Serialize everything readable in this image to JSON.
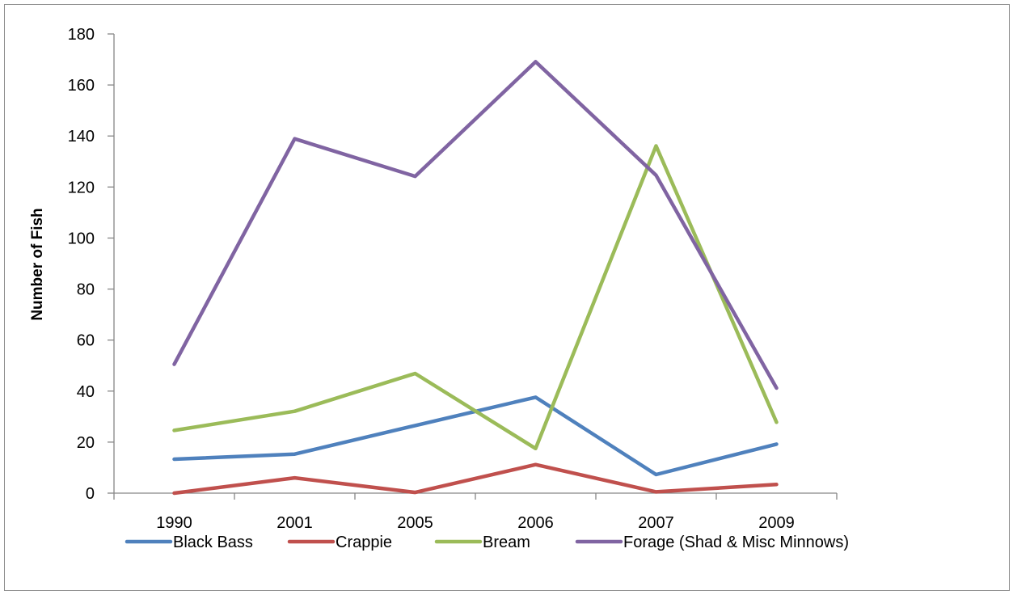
{
  "chart_data": {
    "type": "line",
    "title": "",
    "xlabel": "",
    "ylabel": "Number of Fish",
    "categories": [
      "1990",
      "2001",
      "2005",
      "2006",
      "2007",
      "2009"
    ],
    "ylim": [
      0,
      180
    ],
    "yticks": [
      0,
      20,
      40,
      60,
      80,
      100,
      120,
      140,
      160,
      180
    ],
    "grid": false,
    "legend_position": "bottom",
    "series": [
      {
        "name": "Black Bass",
        "color": "#4f81bd",
        "values": [
          13.3,
          15.3,
          26.5,
          37.6,
          7.3,
          19.2
        ]
      },
      {
        "name": "Crappie",
        "color": "#c0504d",
        "values": [
          0,
          6.0,
          0.3,
          11.2,
          0.5,
          3.4
        ]
      },
      {
        "name": "Bream",
        "color": "#9bbb59",
        "values": [
          24.6,
          32.1,
          46.9,
          17.5,
          136.1,
          27.8
        ]
      },
      {
        "name": "Forage (Shad & Misc Minnows)",
        "color": "#8064a2",
        "values": [
          50.5,
          138.9,
          124.2,
          169.1,
          124.6,
          41.2
        ]
      }
    ]
  }
}
